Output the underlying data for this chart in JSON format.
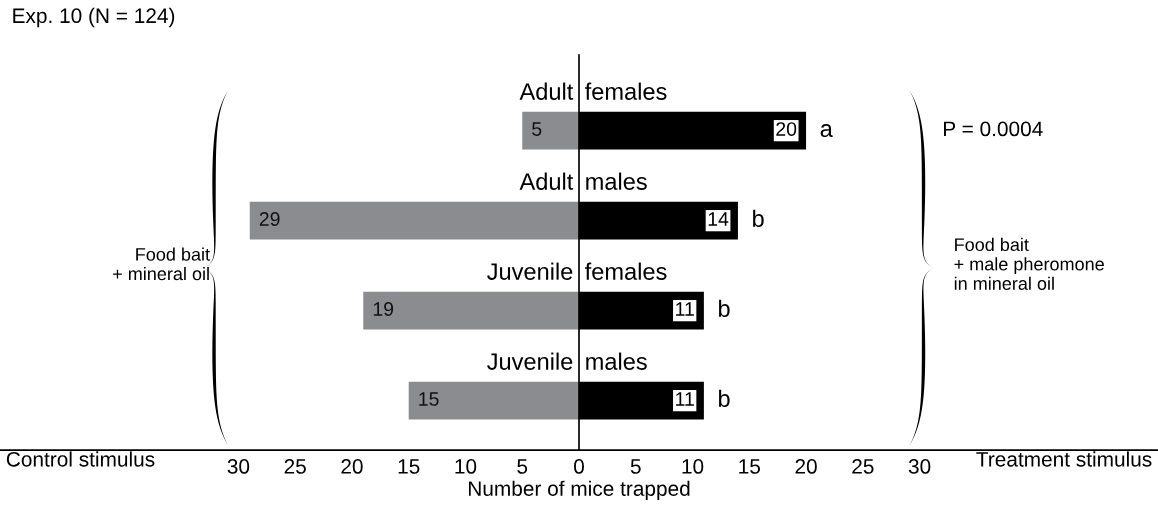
{
  "chart_data": {
    "type": "bar",
    "orientation": "horizontal",
    "title": "Exp. 10 (N = 124)",
    "xlabel": "Number of mice trapped",
    "categories": [
      null,
      null,
      null,
      null
    ],
    "series": [
      {
        "color": "#8a8c90",
        "values": [
          5,
          29,
          19,
          15
        ],
        "base": [
          -5,
          -29,
          -19,
          -15
        ]
      },
      {
        "color": "#000000",
        "values": [
          20,
          14,
          11,
          11
        ]
      }
    ],
    "xlim": [
      -51,
      51
    ],
    "xticks": [
      {
        "value": -30,
        "label": "30"
      },
      {
        "value": -25,
        "label": "25"
      },
      {
        "value": -20,
        "label": "20"
      },
      {
        "value": -15,
        "label": "15"
      },
      {
        "value": -10,
        "label": "10"
      },
      {
        "value": -5,
        "label": "5"
      },
      0,
      5,
      10,
      15,
      20,
      25,
      30
    ],
    "ref_lines": [
      {
        "axis": "x",
        "value": 0,
        "color": "#000000"
      }
    ],
    "annotations": [
      {
        "text": "Adult",
        "x": 0
      },
      {
        "text": "females",
        "x": 0
      },
      {
        "text": "Adult",
        "x": 0
      },
      {
        "text": "males",
        "x": 0
      },
      {
        "text": "Juvenile",
        "x": 0
      },
      {
        "text": "females",
        "x": 0
      },
      {
        "text": "Juvenile",
        "x": 0
      },
      {
        "text": "males",
        "x": 0
      },
      {
        "text": "a",
        "x": 20
      },
      {
        "text": "b",
        "x": 14
      },
      {
        "text": "b",
        "x": 11
      },
      {
        "text": "b",
        "x": 11
      },
      "P = 0.0004",
      "Food bait\n+ mineral oil",
      "Food bait\n+ male pheromone\nin mineral oil",
      "Control stimulus",
      "Treatment stimulus"
    ],
    "data_labels": true,
    "grid": false
  }
}
